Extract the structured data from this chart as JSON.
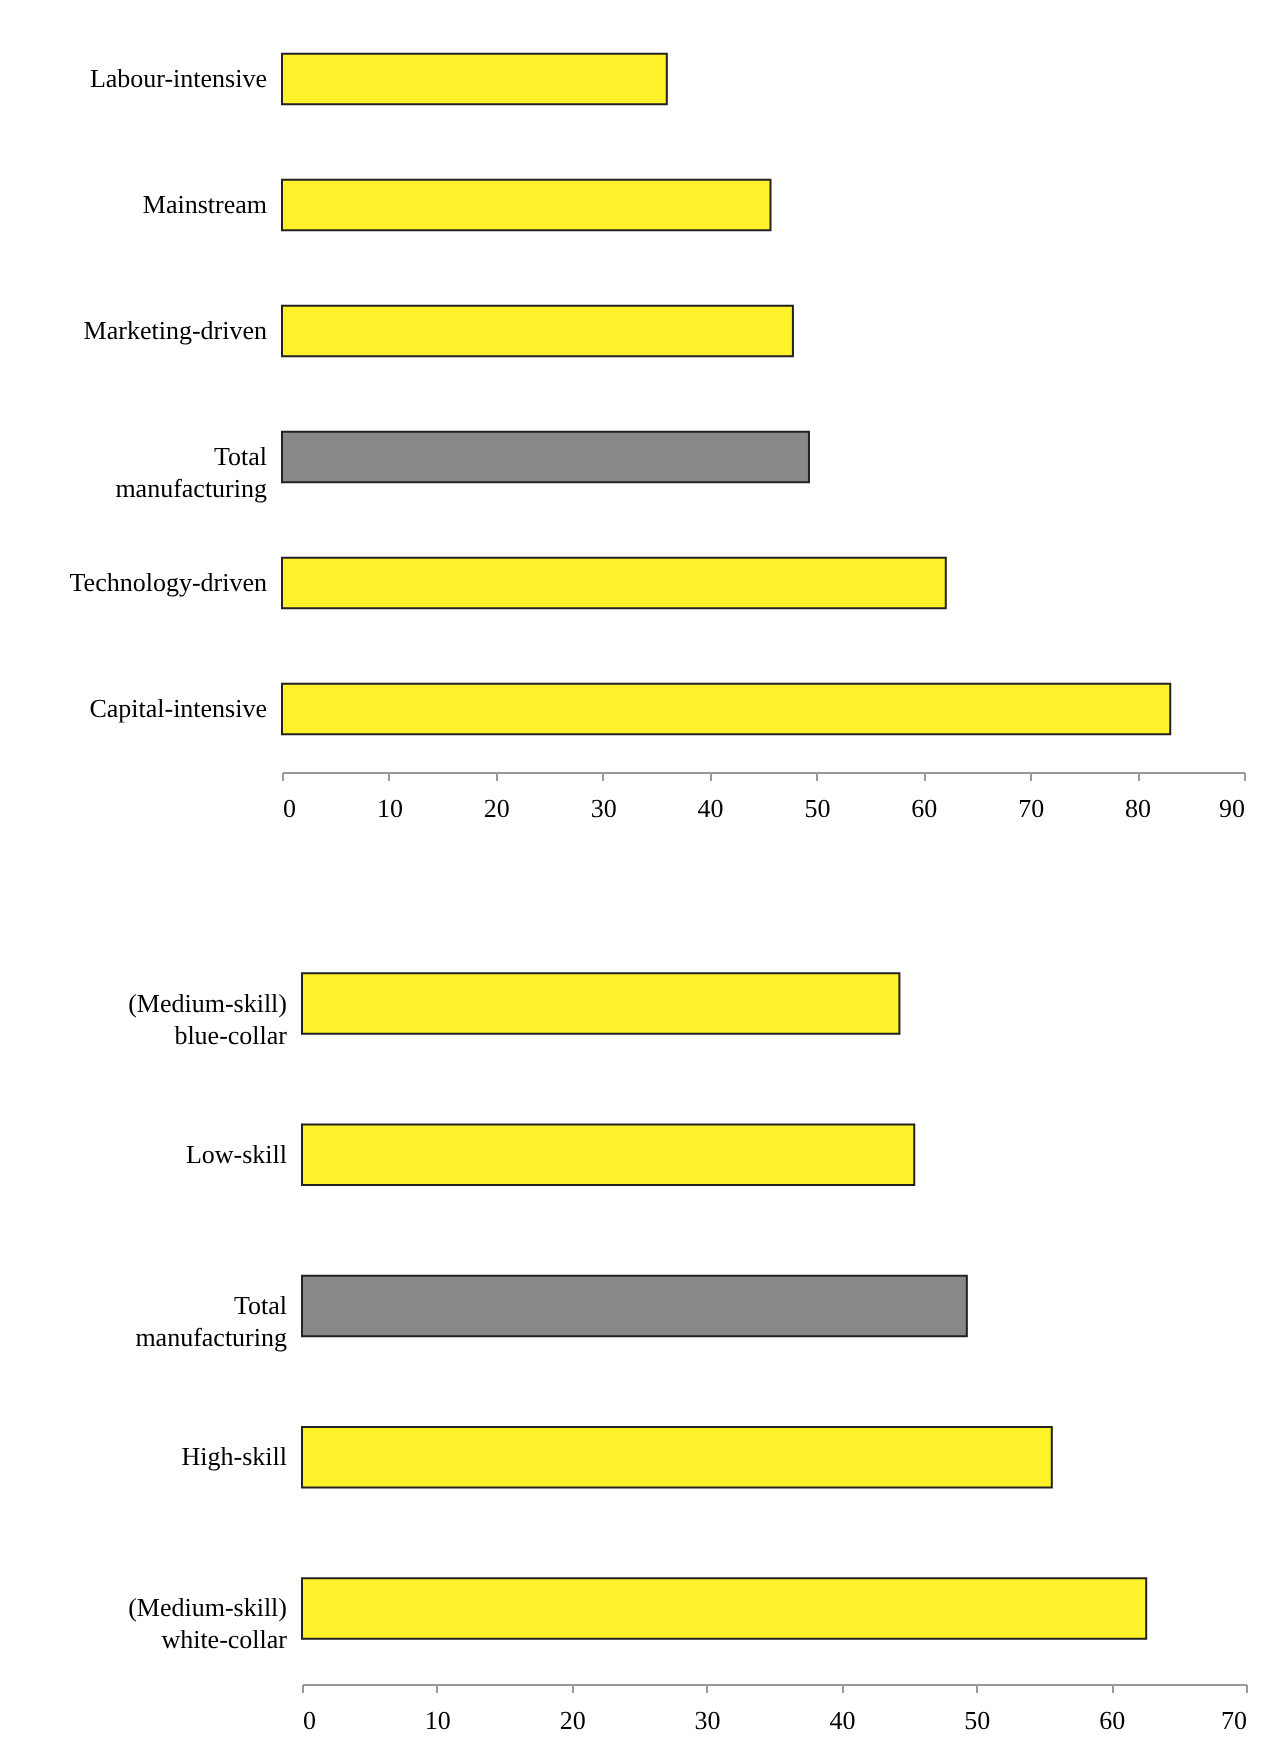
{
  "chart_data": [
    {
      "type": "bar",
      "orientation": "horizontal",
      "categories": [
        "Labour-intensive",
        "Mainstream",
        "Marketing-driven",
        "Total manufacturing",
        "Technology-driven",
        "Capital-intensive"
      ],
      "values": [
        36.0,
        45.7,
        47.8,
        49.3,
        62.1,
        83.1
      ],
      "colors": [
        "#fff22a",
        "#fff22a",
        "#fff22a",
        "#888888",
        "#fff22a",
        "#fff22a"
      ],
      "xlim": [
        0,
        90
      ],
      "xticks": [
        0,
        10,
        20,
        30,
        40,
        50,
        60,
        70,
        80,
        90
      ],
      "grid": false
    },
    {
      "type": "bar",
      "orientation": "horizontal",
      "categories": [
        "(Medium-skill) blue-collar",
        "Low-skill",
        "Total manufacturing",
        "High-skill",
        "(Medium-skill) white-collar"
      ],
      "values": [
        44.3,
        45.4,
        49.3,
        55.6,
        62.6
      ],
      "colors": [
        "#fff22a",
        "#fff22a",
        "#888888",
        "#fff22a",
        "#fff22a"
      ],
      "xlim": [
        0,
        70
      ],
      "xticks": [
        0,
        10,
        20,
        30,
        40,
        50,
        60,
        70
      ],
      "grid": false
    }
  ]
}
